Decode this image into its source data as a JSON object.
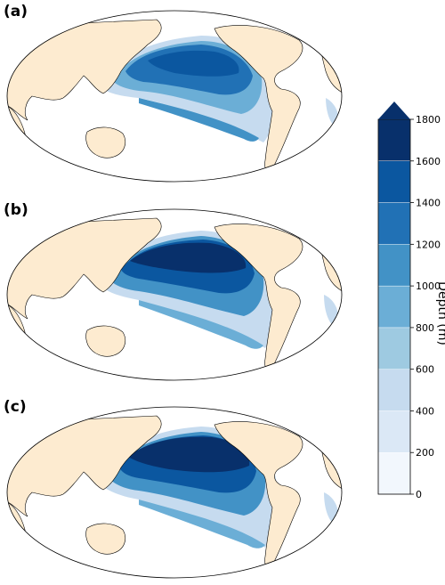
{
  "panels": [
    {
      "label": "(a)"
    },
    {
      "label": "(b)"
    },
    {
      "label": "(c)"
    }
  ],
  "colorbar": {
    "label": "Depth (m)",
    "ticks": [
      "0",
      "200",
      "400",
      "600",
      "800",
      "1000",
      "1200",
      "1400",
      "1600",
      "1800"
    ],
    "colors": [
      "#f2f7fd",
      "#dbe8f6",
      "#c6dbef",
      "#9ecae1",
      "#6baed6",
      "#4292c6",
      "#2171b5",
      "#0b57a0",
      "#08306b"
    ],
    "extend": "max"
  },
  "colors": {
    "land": "#fdebd0",
    "coast": "#000000",
    "ocean": "#ffffff"
  }
}
